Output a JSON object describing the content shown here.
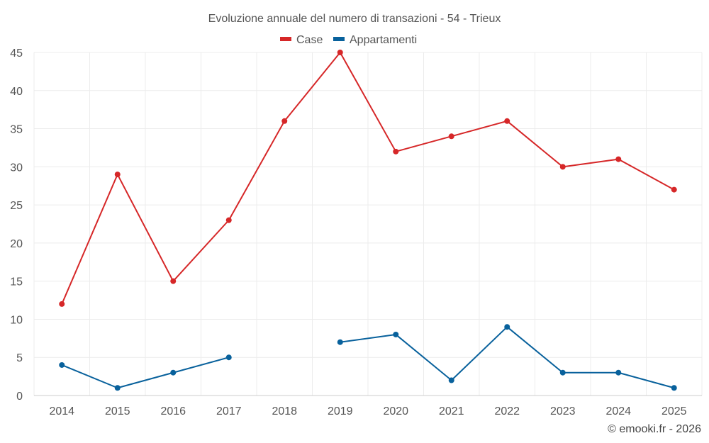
{
  "chart_data": {
    "type": "line",
    "title": "Evoluzione annuale del numero di transazioni - 54 - Trieux",
    "xlabel": "",
    "ylabel": "",
    "categories": [
      "2014",
      "2015",
      "2016",
      "2017",
      "2018",
      "2019",
      "2020",
      "2021",
      "2022",
      "2023",
      "2024",
      "2025"
    ],
    "ylim": [
      0,
      45
    ],
    "yticks": [
      0,
      5,
      10,
      15,
      20,
      25,
      30,
      35,
      40,
      45
    ],
    "grid": true,
    "legend_position": "top-center",
    "series": [
      {
        "name": "Case",
        "color": "#d62728",
        "values": [
          12,
          29,
          15,
          23,
          36,
          45,
          32,
          34,
          36,
          30,
          31,
          27
        ]
      },
      {
        "name": "Appartamenti",
        "color": "#08619c",
        "values": [
          4,
          1,
          3,
          5,
          null,
          7,
          8,
          2,
          9,
          3,
          3,
          1
        ]
      }
    ]
  },
  "credit": "© emooki.fr - 2026"
}
